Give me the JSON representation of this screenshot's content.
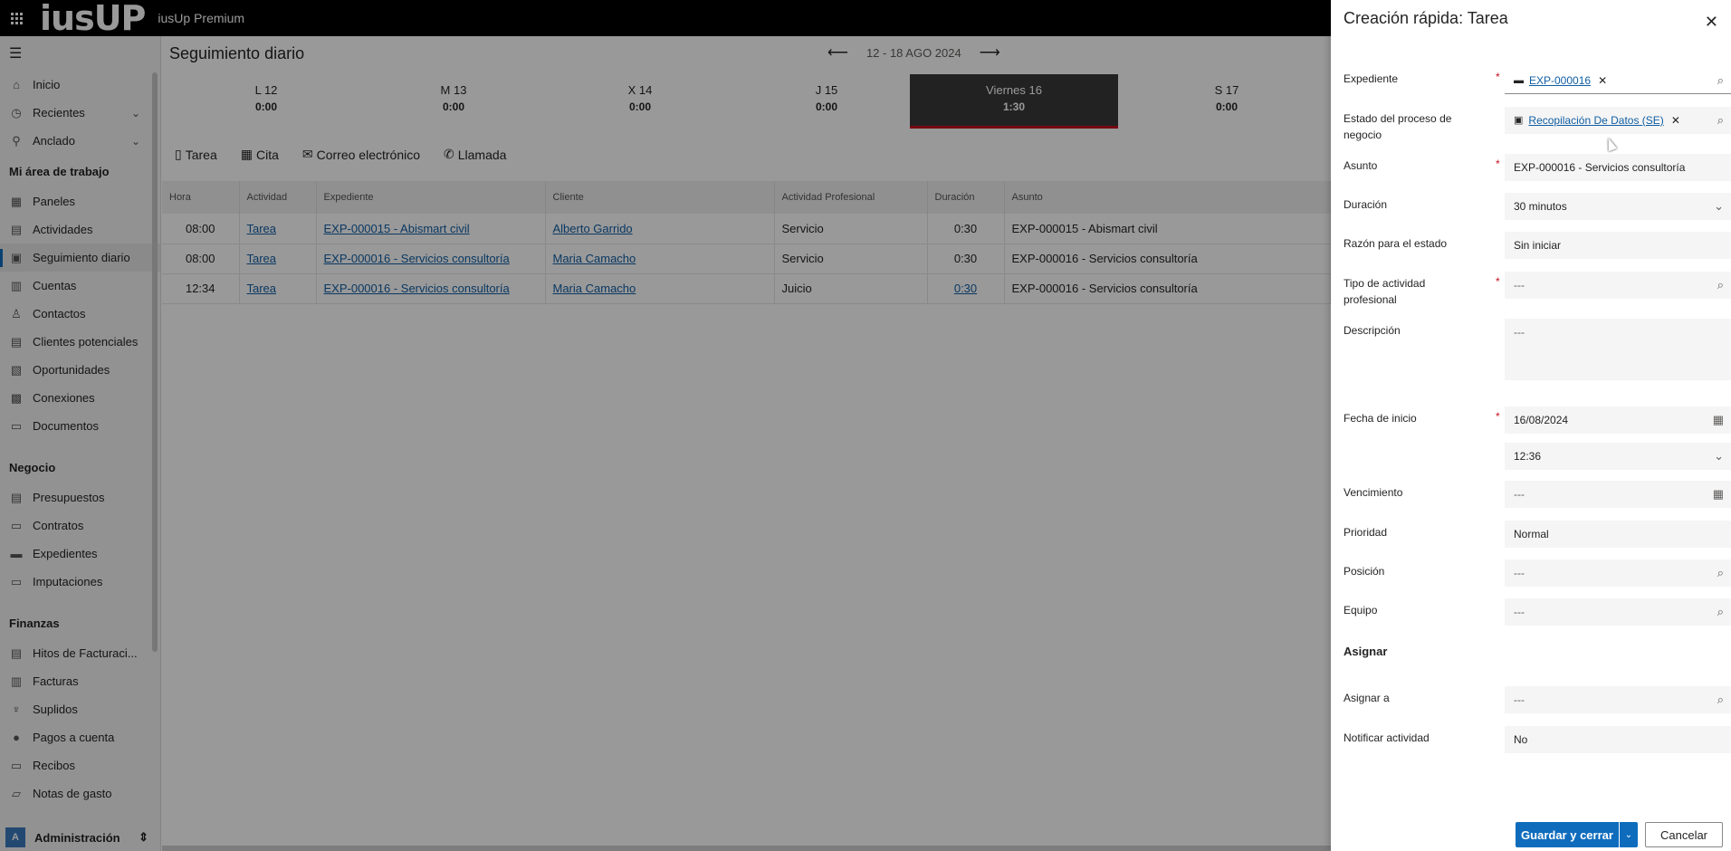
{
  "topbar": {
    "logo": "iusUP",
    "app_name": "iusUp Premium"
  },
  "nav": {
    "items_top": [
      {
        "icon": "home-icon",
        "label": "Inicio"
      },
      {
        "icon": "clock-icon",
        "label": "Recientes"
      },
      {
        "icon": "pin-icon",
        "label": "Anclado"
      }
    ],
    "section_work": "Mi área de trabajo",
    "work_items": [
      {
        "icon": "dashboard-icon",
        "label": "Paneles"
      },
      {
        "icon": "activities-icon",
        "label": "Actividades"
      },
      {
        "icon": "calendar-icon",
        "label": "Seguimiento diario"
      },
      {
        "icon": "accounts-icon",
        "label": "Cuentas"
      },
      {
        "icon": "contacts-icon",
        "label": "Contactos"
      },
      {
        "icon": "leads-icon",
        "label": "Clientes potenciales"
      },
      {
        "icon": "opportunities-icon",
        "label": "Oportunidades"
      },
      {
        "icon": "connections-icon",
        "label": "Conexiones"
      },
      {
        "icon": "documents-icon",
        "label": "Documentos"
      }
    ],
    "section_business": "Negocio",
    "business_items": [
      {
        "icon": "quotes-icon",
        "label": "Presupuestos"
      },
      {
        "icon": "contracts-icon",
        "label": "Contratos"
      },
      {
        "icon": "folder-icon",
        "label": "Expedientes"
      },
      {
        "icon": "imputations-icon",
        "label": "Imputaciones"
      }
    ],
    "section_finance": "Finanzas",
    "finance_items": [
      {
        "icon": "milestone-icon",
        "label": "Hitos de Facturaci..."
      },
      {
        "icon": "invoice-icon",
        "label": "Facturas"
      },
      {
        "icon": "expense-icon",
        "label": "Suplidos"
      },
      {
        "icon": "payment-icon",
        "label": "Pagos a cuenta"
      },
      {
        "icon": "receipt-icon",
        "label": "Recibos"
      },
      {
        "icon": "expense-note-icon",
        "label": "Notas de gasto"
      }
    ],
    "area": {
      "badge": "A",
      "label": "Administración"
    }
  },
  "main": {
    "title": "Seguimiento diario",
    "week": "12 - 18 AGO 2024",
    "days": [
      {
        "label": "L 12",
        "hours": "0:00"
      },
      {
        "label": "M 13",
        "hours": "0:00"
      },
      {
        "label": "X 14",
        "hours": "0:00"
      },
      {
        "label": "J 15",
        "hours": "0:00"
      },
      {
        "label": "Viernes 16",
        "hours": "1:30"
      },
      {
        "label": "S 17",
        "hours": "0:00"
      }
    ],
    "toolbar": {
      "task": "Tarea",
      "appointment": "Cita",
      "email": "Correo electrónico",
      "call": "Llamada"
    },
    "columns": [
      "Hora",
      "Actividad",
      "Expediente",
      "Cliente",
      "Actividad Profesional",
      "Duración",
      "Asunto"
    ],
    "rows": [
      {
        "hora": "08:00",
        "actividad": "Tarea",
        "expediente": "EXP-000015 - Abismart civil",
        "cliente": "Alberto Garrido",
        "profesional": "Servicio",
        "duracion": "0:30",
        "asunto": "EXP-000015 - Abismart civil"
      },
      {
        "hora": "08:00",
        "actividad": "Tarea",
        "expediente": "EXP-000016 - Servicios consultoría",
        "cliente": "Maria Camacho",
        "profesional": "Servicio",
        "duracion": "0:30",
        "asunto": "EXP-000016 - Servicios consultoría"
      },
      {
        "hora": "12:34",
        "actividad": "Tarea",
        "expediente": "EXP-000016 - Servicios consultoría",
        "cliente": "Maria Camacho",
        "profesional": "Juicio",
        "duracion": "0:30",
        "asunto": "EXP-000016 - Servicios consultoría"
      }
    ]
  },
  "panel": {
    "title": "Creación rápida: Tarea",
    "expediente": {
      "label": "Expediente",
      "value": "EXP-000016"
    },
    "estado": {
      "label": "Estado del proceso de negocio",
      "value": "Recopilación De Datos (SE)"
    },
    "asunto": {
      "label": "Asunto",
      "value": "EXP-000016 - Servicios consultoría"
    },
    "duracion": {
      "label": "Duración",
      "value": "30 minutos"
    },
    "razon": {
      "label": "Razón para el estado",
      "value": "Sin iniciar"
    },
    "tipo": {
      "label": "Tipo de actividad profesional",
      "value": "---"
    },
    "descripcion": {
      "label": "Descripción",
      "value": "---"
    },
    "fecha": {
      "label": "Fecha de inicio",
      "value": "16/08/2024",
      "time": "12:36"
    },
    "vencimiento": {
      "label": "Vencimiento",
      "value": "---"
    },
    "prioridad": {
      "label": "Prioridad",
      "value": "Normal"
    },
    "posicion": {
      "label": "Posición",
      "value": "---"
    },
    "equipo": {
      "label": "Equipo",
      "value": "---"
    },
    "section_assign": "Asignar",
    "asignar": {
      "label": "Asignar a",
      "value": "---"
    },
    "notificar": {
      "label": "Notificar actividad",
      "value": "No"
    },
    "save": "Guardar y cerrar",
    "cancel": "Cancelar"
  },
  "colors": {
    "accent": "#0f6cbd",
    "link": "#115ea3",
    "selected_day": "#3b3a39",
    "required": "#c50f1f"
  }
}
